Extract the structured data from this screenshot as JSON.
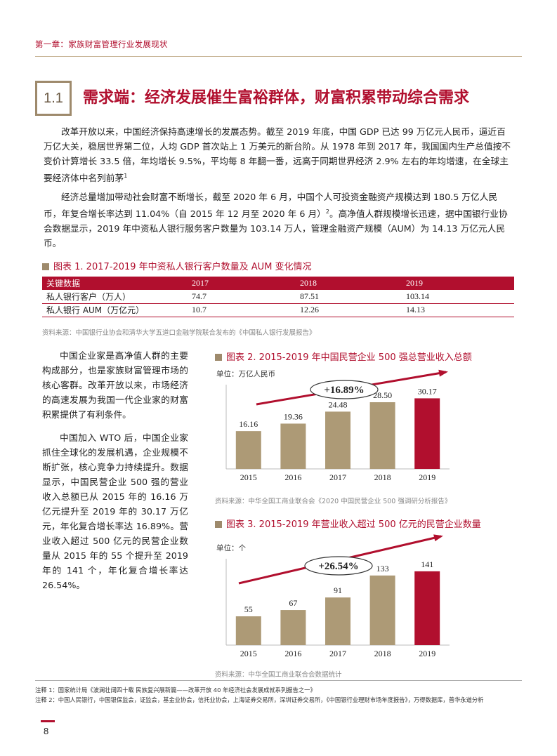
{
  "header": {
    "chapter": "第一章：家族财富管理行业发展现状"
  },
  "section": {
    "number": "1.1",
    "title": "需求端：经济发展催生富裕群体，财富积累带动综合需求"
  },
  "paragraphs": {
    "p1": "改革开放以来，中国经济保持高速增长的发展态势。截至 2019 年底，中国 GDP 已达 99 万亿元人民币，逼近百万亿大关，稳居世界第二位，人均 GDP 首次站上 1 万美元的新台阶。从 1978 年到 2017 年，我国国内生产总值按不变价计算增长 33.5 倍，年均增长 9.5%，平均每 8 年翻一番，远高于同期世界经济 2.9% 左右的年均增速，在全球主要经济体中名列前茅",
    "p1_sup": "1",
    "p2a": "经济总量增加带动社会财富不断增长，截至 2020 年 6 月，中国个人可投资金融资产规模达到 180.5 万亿人民币，年复合增长率达到 11.04%（自 2015 年 12 月至 2020 年 6 月）",
    "p2_sup": "2",
    "p2b": "。高净值人群规模增长迅速，据中国银行业协会数据显示，2019 年中资私人银行服务客户数量为 103.14 万人，管理金融资产规模（AUM）为 14.13 万亿元人民币。"
  },
  "table1": {
    "caption": "图表 1. 2017-2019 年中资私人银行客户数量及 AUM 变化情况",
    "headers": [
      "关键数据",
      "2017",
      "2018",
      "2019"
    ],
    "rows": [
      [
        "私人银行客户（万人）",
        "74.7",
        "87.51",
        "103.14"
      ],
      [
        "私人银行 AUM（万亿元）",
        "10.7",
        "12.26",
        "14.13"
      ]
    ],
    "source": "资料来源：中国银行业协会和清华大学五道口金融学院联合发布的《中国私人银行发展报告》"
  },
  "side_text": {
    "p1": "中国企业家是高净值人群的主要构成部分，也是家族财富管理市场的核心客群。改革开放以来，市场经济的高速发展为我国一代企业家的财富积累提供了有利条件。",
    "p2": "中国加入 WTO 后，中国企业家抓住全球化的发展机遇，企业规模不断扩张，核心竞争力持续提升。数据显示，中国民营企业 500 强的营业收入总额已从 2015 年的 16.16 万亿元提升至 2019 年的 30.17 万亿元，年化复合增长率达 16.89%。营业收入超过 500 亿元的民营企业数量从 2015 年的 55 个提升至 2019 年的 141 个，年化复合增长率达 26.54%。"
  },
  "chart2_text": {
    "caption": "图表 2. 2015-2019 年中国民营企业 500 强总营业收入总额",
    "unit": "单位：万亿人民币",
    "growth": "+16.89%",
    "source": "资料来源：中华全国工商业联合会《2020 中国民营企业 500 强调研分析报告》"
  },
  "chart3_text": {
    "caption": "图表 3. 2015-2019 年营业收入超过 500 亿元的民营企业数量",
    "unit": "单位：个",
    "growth": "+26.54%",
    "source": "资料来源：中华全国工商业联合会数据统计"
  },
  "chart_data": [
    {
      "type": "bar",
      "categories": [
        "2015",
        "2016",
        "2017",
        "2018",
        "2019"
      ],
      "values": [
        16.16,
        19.36,
        24.48,
        28.5,
        30.17
      ],
      "labels": [
        "16.16",
        "19.36",
        "24.48",
        "28.50",
        "30.17"
      ],
      "title": "图表 2. 2015-2019 年中国民营企业 500 强总营业收入总额",
      "ylabel": "单位：万亿人民币",
      "ylim": [
        0,
        36
      ],
      "annotation": "+16.89%",
      "colors": [
        "#ad9a76",
        "#ad9a76",
        "#ad9a76",
        "#ad9a76",
        "#b10f2e"
      ]
    },
    {
      "type": "bar",
      "categories": [
        "2015",
        "2016",
        "2017",
        "2018",
        "2019"
      ],
      "values": [
        55,
        67,
        91,
        133,
        141
      ],
      "labels": [
        "55",
        "67",
        "91",
        "133",
        "141"
      ],
      "title": "图表 3. 2015-2019 年营业收入超过 500 亿元的民营企业数量",
      "ylabel": "单位：个",
      "ylim": [
        0,
        165
      ],
      "annotation": "+26.54%",
      "colors": [
        "#ad9a76",
        "#ad9a76",
        "#ad9a76",
        "#ad9a76",
        "#b10f2e"
      ]
    }
  ],
  "footnotes": {
    "n1": "注释 1：国家统计局《波澜壮阔四十载 民族复兴展新篇——改革开放 40 年经济社会发展成就系列报告之一》",
    "n2": "注释 2：中国人民银行，中国银保监会，证监会，基金业协会，信托业协会，上海证券交易所，深圳证券交易所，《中国银行业理财市场年度报告》，万得数据库，普华永道分析"
  },
  "page_number": "8",
  "colors": {
    "accent": "#b10f2e",
    "gold": "#9e8a6c",
    "bar": "#ad9a76"
  }
}
